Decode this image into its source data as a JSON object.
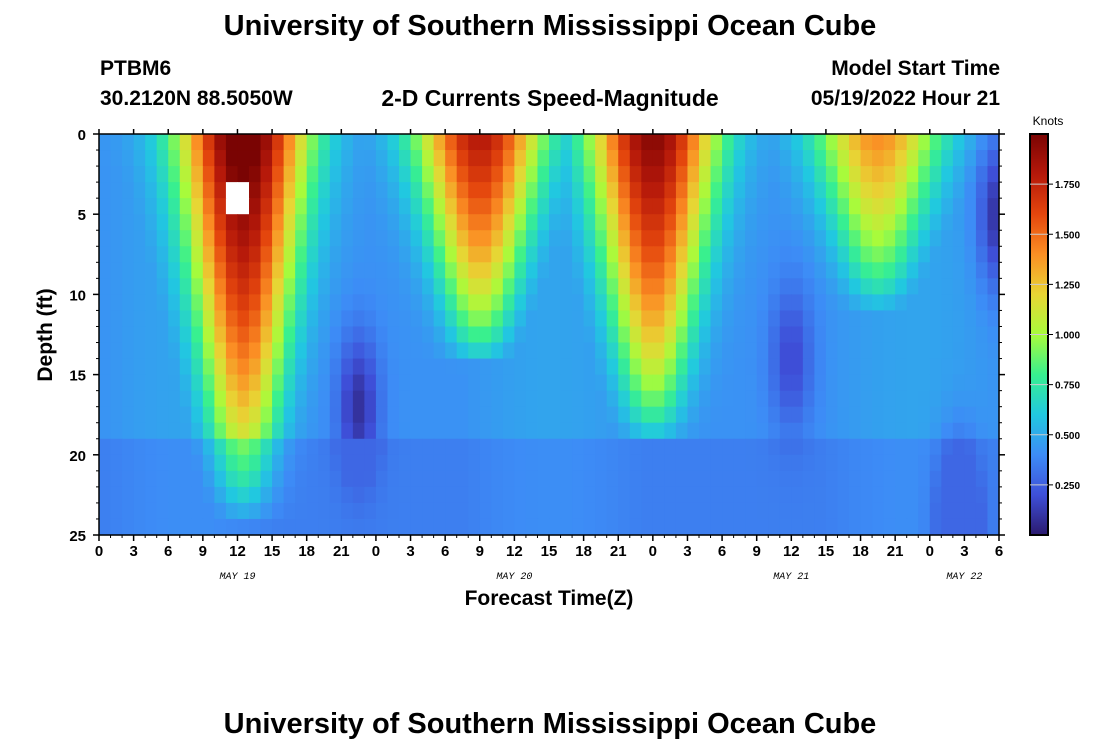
{
  "header": {
    "title": "University of Southern Mississippi Ocean Cube",
    "station_id": "PTBM6",
    "station_coords": "30.2120N  88.5050W",
    "plot_title": "2-D Currents Speed-Magnitude",
    "model_start_label": "Model Start Time",
    "model_start_value": "05/19/2022 Hour 21"
  },
  "footer": {
    "title": "University of Southern Mississippi Ocean Cube"
  },
  "chart_data": {
    "type": "heatmap",
    "title": "2-D Currents Speed-Magnitude",
    "xlabel": "Forecast Time(Z)",
    "ylabel": "Depth (ft)",
    "x_unit": "hours since 2022-05-19 00Z",
    "xlim": [
      0,
      78
    ],
    "ylim": [
      0,
      25
    ],
    "y_inverted": true,
    "x_ticks": [
      {
        "h": 0,
        "label": "0"
      },
      {
        "h": 3,
        "label": "3"
      },
      {
        "h": 6,
        "label": "6"
      },
      {
        "h": 9,
        "label": "9"
      },
      {
        "h": 12,
        "label": "12"
      },
      {
        "h": 15,
        "label": "15"
      },
      {
        "h": 18,
        "label": "18"
      },
      {
        "h": 21,
        "label": "21"
      },
      {
        "h": 24,
        "label": "0"
      },
      {
        "h": 27,
        "label": "3"
      },
      {
        "h": 30,
        "label": "6"
      },
      {
        "h": 33,
        "label": "9"
      },
      {
        "h": 36,
        "label": "12"
      },
      {
        "h": 39,
        "label": "15"
      },
      {
        "h": 42,
        "label": "18"
      },
      {
        "h": 45,
        "label": "21"
      },
      {
        "h": 48,
        "label": "0"
      },
      {
        "h": 51,
        "label": "3"
      },
      {
        "h": 54,
        "label": "6"
      },
      {
        "h": 57,
        "label": "9"
      },
      {
        "h": 60,
        "label": "12"
      },
      {
        "h": 63,
        "label": "15"
      },
      {
        "h": 66,
        "label": "18"
      },
      {
        "h": 69,
        "label": "21"
      },
      {
        "h": 72,
        "label": "0"
      },
      {
        "h": 75,
        "label": "3"
      },
      {
        "h": 78,
        "label": "6"
      }
    ],
    "y_ticks": [
      0,
      5,
      10,
      15,
      20,
      25
    ],
    "date_labels": [
      {
        "h": 12,
        "label": "MAY 19"
      },
      {
        "h": 36,
        "label": "MAY 20"
      },
      {
        "h": 60,
        "label": "MAY 21"
      },
      {
        "h": 75,
        "label": "MAY 22"
      }
    ],
    "colorbar": {
      "unit": "Knots",
      "range": [
        0,
        2.0
      ],
      "ticks": [
        {
          "v": 0.25,
          "label": "0.250"
        },
        {
          "v": 0.5,
          "label": "0.500"
        },
        {
          "v": 0.75,
          "label": "0.750"
        },
        {
          "v": 1.0,
          "label": "1.000"
        },
        {
          "v": 1.25,
          "label": "1.250"
        },
        {
          "v": 1.5,
          "label": "1.500"
        },
        {
          "v": 1.75,
          "label": "1.750"
        }
      ],
      "colors": [
        "#2b1a6e",
        "#3e4fd8",
        "#3d8cf6",
        "#21c8e0",
        "#38f08f",
        "#a8fb3b",
        "#e8d534",
        "#fb8f24",
        "#e4460d",
        "#b5180a",
        "#7a0403"
      ]
    },
    "speed_structure": {
      "surface_maxima": [
        {
          "h": 12.5,
          "depth_extent_ft": 21,
          "peak_knots": 2.0
        },
        {
          "h": 33,
          "depth_extent_ft": 11,
          "peak_knots": 1.7
        },
        {
          "h": 48,
          "depth_extent_ft": 16,
          "peak_knots": 1.85
        },
        {
          "h": 67.5,
          "depth_extent_ft": 8,
          "peak_knots": 1.3
        }
      ],
      "slack_minima": [
        {
          "h": 22.5,
          "depth_center_ft": 17,
          "min_knots": 0.05
        },
        {
          "h": 60,
          "depth_center_ft": 14,
          "min_knots": 0.15
        },
        {
          "h": 74.5,
          "depth_center_ft": 24,
          "min_knots": 0.0
        },
        {
          "h": 78,
          "depth_center_ft": 5,
          "min_knots": 0.05
        }
      ],
      "missing_cells": [
        {
          "h": 12,
          "depth_ft": 4
        }
      ]
    }
  }
}
